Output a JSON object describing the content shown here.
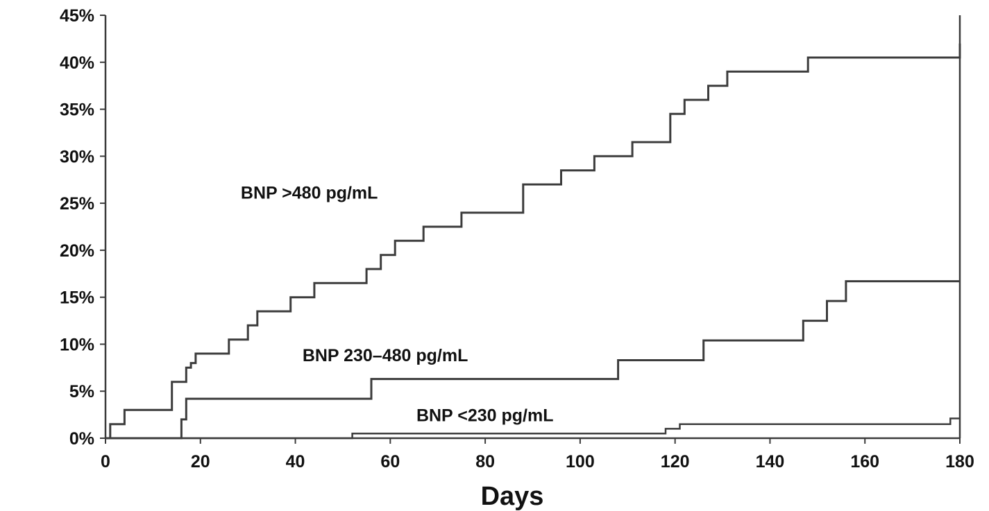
{
  "chart_data": {
    "type": "line",
    "title": "",
    "xlabel": "Days",
    "ylabel": "",
    "xlim": [
      0,
      180
    ],
    "ylim": [
      0,
      45
    ],
    "x_ticks": [
      0,
      20,
      40,
      60,
      80,
      100,
      120,
      140,
      160,
      180
    ],
    "x_tick_labels": [
      "0",
      "20",
      "40",
      "60",
      "80",
      "100",
      "120",
      "140",
      "160",
      "180"
    ],
    "y_ticks": [
      0,
      5,
      10,
      15,
      20,
      25,
      30,
      35,
      40,
      45
    ],
    "y_tick_labels": [
      "0%",
      "5%",
      "10%",
      "15%",
      "20%",
      "25%",
      "30%",
      "35%",
      "40%",
      "45%"
    ],
    "grid": false,
    "legend": "none",
    "step": true,
    "series": [
      {
        "name": "BNP >480 pg/mL",
        "x": [
          0,
          1,
          4,
          14,
          17,
          18,
          19,
          26,
          30,
          32,
          39,
          44,
          55,
          58,
          61,
          67,
          75,
          88,
          96,
          103,
          111,
          119,
          120,
          122,
          127,
          131,
          148,
          180
        ],
        "y": [
          0,
          1.5,
          3.0,
          6.0,
          7.5,
          8.0,
          9.0,
          10.5,
          12.0,
          13.5,
          15.0,
          16.5,
          18.0,
          19.5,
          21.0,
          22.5,
          24.0,
          27.0,
          28.5,
          30.0,
          31.5,
          34.5,
          34.5,
          36.0,
          37.5,
          39.0,
          40.5,
          42.0
        ]
      },
      {
        "name": "BNP 230–480 pg/mL",
        "x": [
          0,
          16,
          17,
          56,
          108,
          126,
          147,
          152,
          156,
          180
        ],
        "y": [
          0,
          2.0,
          4.2,
          6.3,
          8.3,
          10.4,
          12.5,
          14.6,
          16.7,
          16.7
        ]
      },
      {
        "name": "BNP <230 pg/mL",
        "x": [
          0,
          52,
          118,
          121,
          178,
          180
        ],
        "y": [
          0,
          0.5,
          1.0,
          1.5,
          2.1,
          2.1
        ]
      }
    ]
  }
}
